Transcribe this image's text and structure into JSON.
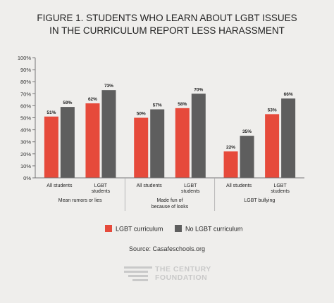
{
  "title_line1": "FIGURE 1.  STUDENTS WHO LEARN ABOUT LGBT ISSUES",
  "title_line2": "IN THE CURRICULUM REPORT LESS HARASSMENT",
  "source": "Source: Casafeschools.org",
  "logo": {
    "line1": "THE CENTURY",
    "line2": "FOUNDATION"
  },
  "colors": {
    "lgbt_curriculum": "#e64a3b",
    "no_lgbt_curriculum": "#5e5e5e",
    "background": "#efeeec",
    "axis": "#777777",
    "logo": "#c9c9c9"
  },
  "chart_data": {
    "type": "bar",
    "ylim": [
      0,
      100
    ],
    "yticks": [
      "0%",
      "10%",
      "20%",
      "30%",
      "40%",
      "50%",
      "60%",
      "70%",
      "80%",
      "90%",
      "100%"
    ],
    "grid": false,
    "legend_position": "bottom",
    "groups": [
      {
        "label": [
          "Mean rumors or lies"
        ],
        "subgroups": [
          {
            "label": [
              "All students"
            ],
            "values": [
              51,
              59
            ]
          },
          {
            "label": [
              "LGBT",
              "students"
            ],
            "values": [
              62,
              73
            ]
          }
        ]
      },
      {
        "label": [
          "Made fun of",
          "because of looks"
        ],
        "subgroups": [
          {
            "label": [
              "All students"
            ],
            "values": [
              50,
              57
            ]
          },
          {
            "label": [
              "LGBT",
              "students"
            ],
            "values": [
              58,
              70
            ]
          }
        ]
      },
      {
        "label": [
          "LGBT bullying"
        ],
        "subgroups": [
          {
            "label": [
              "All students"
            ],
            "values": [
              22,
              35
            ]
          },
          {
            "label": [
              "LGBT",
              "students"
            ],
            "values": [
              53,
              66
            ]
          }
        ]
      }
    ],
    "series": [
      {
        "name": "LGBT curriculum",
        "color": "#e64a3b"
      },
      {
        "name": "No LGBT curriculum",
        "color": "#5e5e5e"
      }
    ]
  }
}
